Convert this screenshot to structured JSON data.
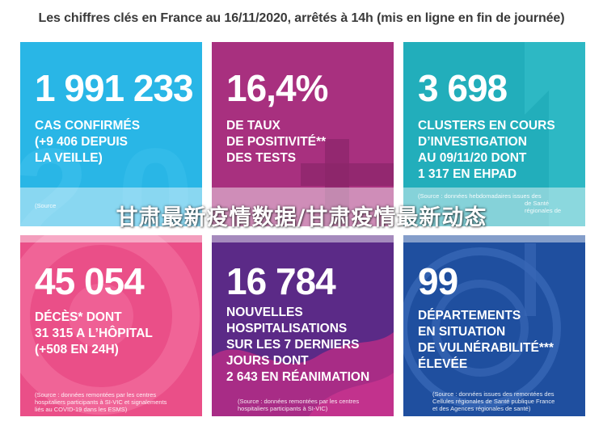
{
  "headline": "Les chiffres clés en France au 16/11/2020, arrêtés à 14h (mis en ligne en fin de journée)",
  "cards": [
    {
      "number": "1 991 233",
      "lines": [
        "CAS CONFIRMÉS",
        "(+9 406 DEPUIS",
        "LA VEILLE)"
      ],
      "source": [
        "(Source"
      ],
      "color": "#29b6e6"
    },
    {
      "number": "16,4%",
      "lines": [
        "DE TAUX",
        "DE POSITIVITÉ**",
        "DES TESTS"
      ],
      "source": [],
      "color": "#a8307f"
    },
    {
      "number": "3 698",
      "lines": [
        "CLUSTERS EN COURS",
        "D’INVESTIGATION",
        "AU 09/11/20 DONT",
        "1 317 EN EHPAD"
      ],
      "source": [
        "(Source : données hebdomadaires issues des",
        "de Santé",
        "régionales de"
      ],
      "color": "#22aebb"
    },
    {
      "number": "45 054",
      "lines": [
        "DÉCÈS* DONT",
        "31 315 A L’HÔPITAL",
        "(+508 EN 24H)"
      ],
      "source": [
        "(Source : données remontées par les centres",
        "hospitaliers participants à SI-VIC et signalements",
        "liés au COVID-19 dans les ESMS)"
      ],
      "color": "#ea4f88"
    },
    {
      "number": "16 784",
      "lines": [
        "NOUVELLES",
        "HOSPITALISATIONS",
        "SUR LES 7 DERNIERS",
        "JOURS DONT",
        "2 643 EN RÉANIMATION"
      ],
      "source": [
        "(Source : données remontées par les centres",
        "hospitaliers participants à SI-VIC)"
      ],
      "color": "#5b2a87"
    },
    {
      "number": "99",
      "lines": [
        "DÉPARTEMENTS",
        "EN SITUATION",
        "DE VULNÉRABILITÉ***",
        "ÉLEVÉE"
      ],
      "source": [
        "(Source : données issues des remontées des",
        "Cellules régionales de Santé publique France",
        "et des Agences régionales de santé)"
      ],
      "color": "#1f4f9f"
    }
  ],
  "overlay_title": "甘肃最新疫情数据/甘肃疫情最新动态"
}
